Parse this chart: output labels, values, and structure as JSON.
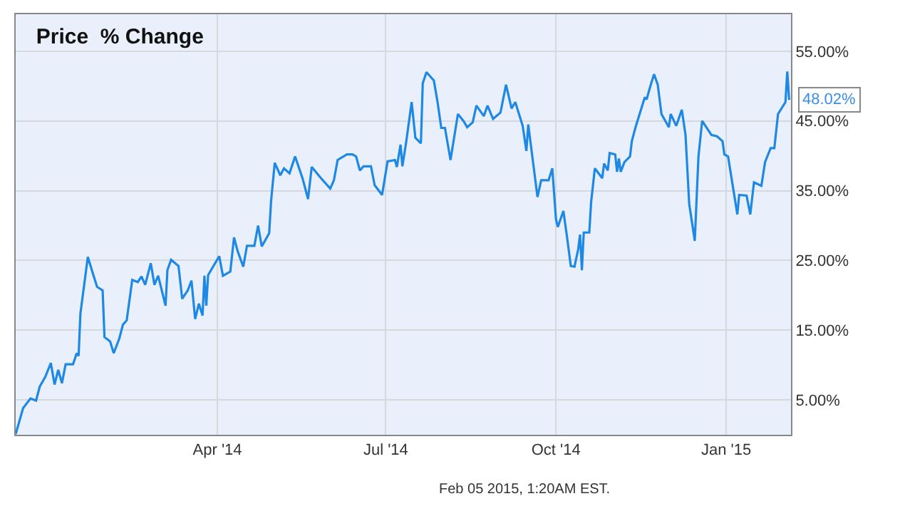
{
  "chart_data": {
    "type": "line",
    "title": "Price  % Change",
    "annotations": [
      {
        "text": "48.02%",
        "x": "2015-02-04",
        "y": 48.02
      },
      "Feb 05 2015, 1:20AM EST."
    ],
    "x": [
      "2013-12-13",
      "2013-12-17",
      "2013-12-21",
      "2013-12-24",
      "2013-12-26",
      "2013-12-29",
      "2014-01-01",
      "2014-01-03",
      "2014-01-05",
      "2014-01-07",
      "2014-01-09",
      "2014-01-13",
      "2014-01-15",
      "2014-01-16",
      "2014-01-17",
      "2014-01-21",
      "2014-01-24",
      "2014-01-26",
      "2014-01-29",
      "2014-01-30",
      "2014-02-02",
      "2014-02-04",
      "2014-02-07",
      "2014-02-09",
      "2014-02-11",
      "2014-02-14",
      "2014-02-17",
      "2014-02-19",
      "2014-02-21",
      "2014-02-24",
      "2014-02-26",
      "2014-02-28",
      "2014-03-04",
      "2014-03-05",
      "2014-03-07",
      "2014-03-11",
      "2014-03-13",
      "2014-03-16",
      "2014-03-18",
      "2014-03-20",
      "2014-03-22",
      "2014-03-24",
      "2014-03-25",
      "2014-03-26",
      "2014-03-27",
      "2014-04-02",
      "2014-04-04",
      "2014-04-08",
      "2014-04-10",
      "2014-04-12",
      "2014-04-15",
      "2014-04-17",
      "2014-04-21",
      "2014-04-23",
      "2014-04-25",
      "2014-04-29",
      "2014-04-30",
      "2014-05-02",
      "2014-05-05",
      "2014-05-07",
      "2014-05-10",
      "2014-05-13",
      "2014-05-17",
      "2014-05-20",
      "2014-05-22",
      "2014-05-27",
      "2014-06-01",
      "2014-06-03",
      "2014-06-05",
      "2014-06-10",
      "2014-06-13",
      "2014-06-15",
      "2014-06-17",
      "2014-06-19",
      "2014-06-23",
      "2014-06-25",
      "2014-06-29",
      "2014-07-02",
      "2014-07-06",
      "2014-07-07",
      "2014-07-09",
      "2014-07-10",
      "2014-07-12",
      "2014-07-15",
      "2014-07-17",
      "2014-07-20",
      "2014-07-21",
      "2014-07-23",
      "2014-07-27",
      "2014-07-29",
      "2014-07-31",
      "2014-08-02",
      "2014-08-05",
      "2014-08-09",
      "2014-08-12",
      "2014-08-14",
      "2014-08-17",
      "2014-08-19",
      "2014-08-23",
      "2014-08-25",
      "2014-08-28",
      "2014-09-01",
      "2014-09-04",
      "2014-09-07",
      "2014-09-09",
      "2014-09-13",
      "2014-09-15",
      "2014-09-16",
      "2014-09-21",
      "2014-09-23",
      "2014-09-27",
      "2014-09-29",
      "2014-10-01",
      "2014-10-02",
      "2014-10-05",
      "2014-10-07",
      "2014-10-09",
      "2014-10-11",
      "2014-10-13",
      "2014-10-14",
      "2014-10-15",
      "2014-10-16",
      "2014-10-19",
      "2014-10-20",
      "2014-10-22",
      "2014-10-26",
      "2014-10-27",
      "2014-10-29",
      "2014-10-30",
      "2014-11-02",
      "2014-11-03",
      "2014-11-04",
      "2014-11-05",
      "2014-11-07",
      "2014-11-10",
      "2014-11-11",
      "2014-11-13",
      "2014-11-18",
      "2014-11-19",
      "2014-11-21",
      "2014-11-23",
      "2014-11-25",
      "2014-11-27",
      "2014-12-01",
      "2014-12-02",
      "2014-12-05",
      "2014-12-08",
      "2014-12-10",
      "2014-12-12",
      "2014-12-15",
      "2014-12-17",
      "2014-12-19",
      "2014-12-24",
      "2014-12-27",
      "2014-12-30",
      "2014-12-31",
      "2015-01-02",
      "2015-01-07",
      "2015-01-08",
      "2015-01-12",
      "2015-01-14",
      "2015-01-16",
      "2015-01-20",
      "2015-01-22",
      "2015-01-25",
      "2015-01-27",
      "2015-01-29",
      "2015-02-02",
      "2015-02-03",
      "2015-02-04"
    ],
    "series": [
      {
        "color": "#1e88e5",
        "values": [
          0.1,
          3.8,
          5.2,
          4.9,
          6.9,
          8.3,
          10.3,
          7.2,
          9.3,
          7.4,
          10.1,
          10.1,
          11.7,
          11.3,
          17.4,
          25.5,
          22.9,
          21.2,
          20.7,
          14.0,
          13.4,
          11.7,
          13.8,
          15.8,
          16.4,
          22.2,
          21.9,
          22.7,
          21.5,
          24.6,
          21.5,
          22.8,
          18.5,
          23.6,
          25.1,
          24.2,
          19.5,
          20.7,
          22.1,
          16.6,
          18.8,
          17.1,
          22.8,
          18.5,
          22.9,
          25.6,
          22.8,
          23.4,
          28.3,
          26.3,
          24.1,
          27.1,
          27.1,
          30.0,
          27.0,
          28.9,
          33.4,
          39.0,
          37.2,
          38.2,
          37.5,
          39.9,
          36.8,
          33.8,
          38.4,
          36.8,
          35.3,
          36.5,
          39.4,
          40.2,
          40.2,
          39.9,
          37.9,
          38.5,
          38.5,
          35.8,
          34.4,
          39.2,
          39.4,
          38.4,
          41.6,
          38.5,
          41.9,
          47.7,
          42.6,
          41.8,
          50.4,
          52.0,
          50.8,
          47.7,
          44.0,
          44.0,
          39.4,
          46.0,
          45.0,
          44.1,
          44.8,
          47.2,
          45.7,
          47.2,
          45.3,
          46.2,
          50.2,
          46.8,
          47.7,
          44.3,
          40.7,
          44.5,
          34.1,
          36.5,
          36.5,
          38.2,
          30.9,
          29.8,
          32.1,
          28.3,
          24.2,
          24.1,
          26.6,
          28.7,
          23.6,
          29.0,
          29.0,
          33.4,
          38.2,
          36.8,
          38.9,
          37.9,
          40.4,
          40.2,
          37.7,
          39.6,
          37.7,
          39.1,
          39.9,
          42.1,
          44.1,
          48.4,
          48.1,
          50.0,
          51.7,
          50.2,
          46.0,
          44.1,
          46.0,
          44.3,
          46.6,
          43.0,
          33.1,
          27.8,
          39.9,
          45.0,
          43.0,
          42.8,
          42.1,
          40.2,
          39.9,
          31.6,
          34.4,
          34.3,
          31.6,
          36.2,
          35.7,
          39.1,
          41.1,
          41.1,
          46.0,
          47.7,
          52.1,
          48.02
        ]
      }
    ],
    "xlim": [
      "2013-12-13",
      "2015-02-05"
    ],
    "xticks": [
      {
        "value": "2014-04-01",
        "label": "Apr '14"
      },
      {
        "value": "2014-07-01",
        "label": "Jul '14"
      },
      {
        "value": "2014-10-01",
        "label": "Oct '14"
      },
      {
        "value": "2015-01-01",
        "label": "Jan '15"
      }
    ],
    "ylim": [
      0,
      60.3
    ],
    "yticks": [
      {
        "value": 5,
        "label": "5.00%"
      },
      {
        "value": 15,
        "label": "15.00%"
      },
      {
        "value": 25,
        "label": "25.00%"
      },
      {
        "value": 35,
        "label": "35.00%"
      },
      {
        "value": 45,
        "label": "45.00%"
      },
      {
        "value": 55,
        "label": "55.00%"
      }
    ],
    "grid": true,
    "marker": "none",
    "line_style": "solid"
  }
}
